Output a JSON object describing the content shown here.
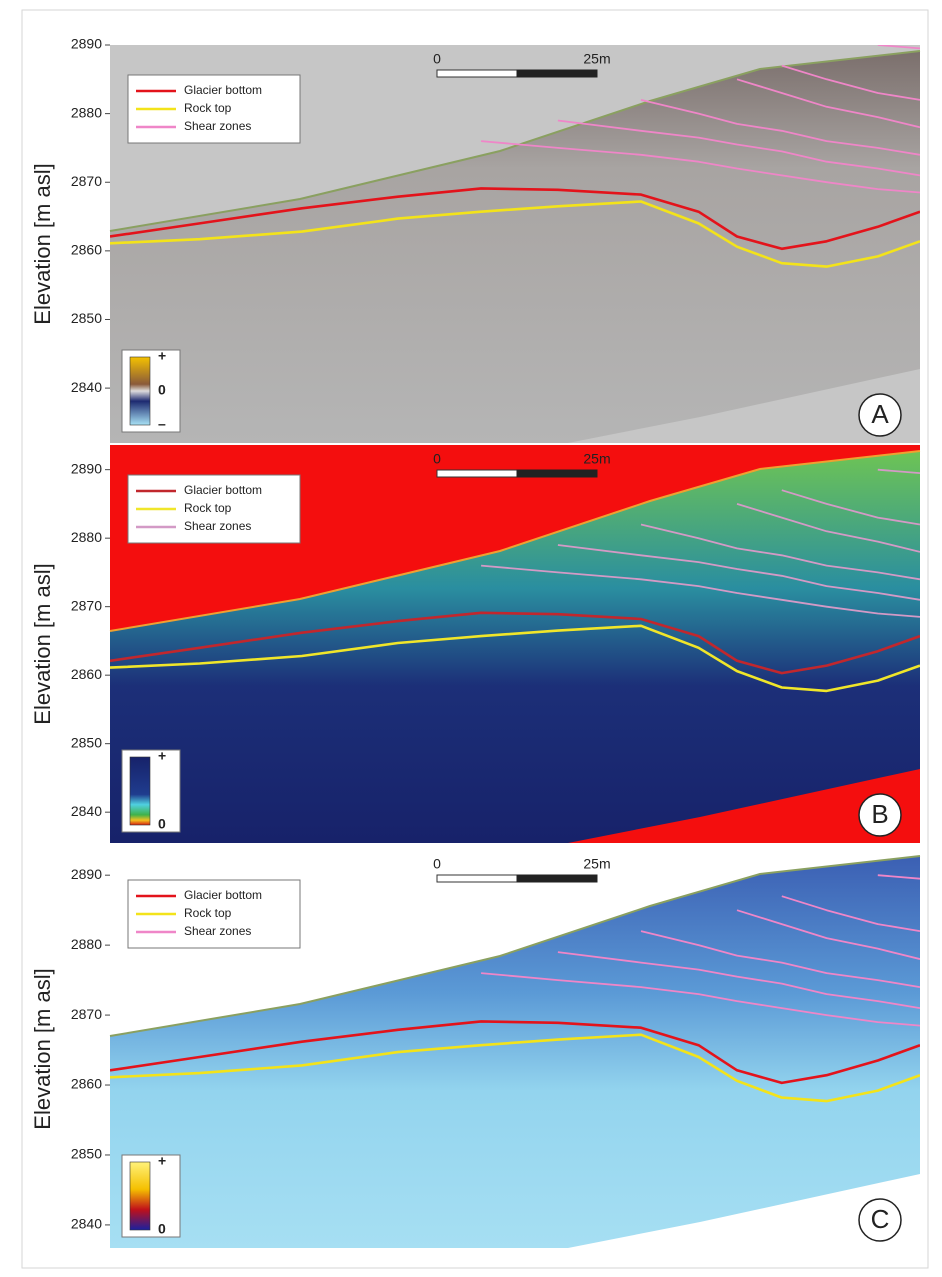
{
  "chart_data": [
    {
      "type": "line",
      "panel": "A",
      "ylabel": "Elevation [m asl]",
      "legend": "upper left",
      "scale_bar": [
        "0",
        "25m"
      ],
      "colorbar_labels": [
        "+",
        "0",
        "–"
      ],
      "x": [
        0,
        14,
        30,
        45,
        58,
        70,
        83,
        92,
        98,
        105,
        112,
        120,
        126.6
      ],
      "xlim": [
        0,
        126.6
      ],
      "ylim": [
        2832,
        2890
      ],
      "yticks": [
        2840,
        2850,
        2860,
        2870,
        2880,
        2890
      ],
      "series": [
        {
          "name": "Glacier bottom",
          "color": "#e3131b",
          "values": [
            2862.1,
            2864.0,
            2866.2,
            2867.9,
            2869.1,
            2868.9,
            2868.2,
            2865.7,
            2862.1,
            2860.3,
            2861.4,
            2863.5,
            2865.7
          ]
        },
        {
          "name": "Rock top",
          "color": "#f3e31a",
          "values": [
            2861.1,
            2861.7,
            2862.8,
            2864.7,
            2865.7,
            2866.5,
            2867.2,
            2864.0,
            2860.6,
            2858.2,
            2857.7,
            2859.2,
            2861.4
          ]
        },
        {
          "name": "Shear zones",
          "color": "#ef86c8",
          "values": [
            null,
            null,
            null,
            null,
            2876,
            2875,
            2874,
            2873,
            2872,
            2871,
            2870,
            2869,
            2868.5
          ]
        },
        {
          "color": "#ef86c8",
          "values": [
            null,
            null,
            null,
            null,
            null,
            2879,
            2877.5,
            2876.5,
            2875.5,
            2874.5,
            2873,
            2872,
            2871
          ]
        },
        {
          "color": "#ef86c8",
          "values": [
            null,
            null,
            null,
            null,
            null,
            null,
            2882,
            2880,
            2878.5,
            2877.5,
            2876,
            2875,
            2874
          ]
        },
        {
          "color": "#ef86c8",
          "values": [
            null,
            null,
            null,
            null,
            null,
            null,
            null,
            null,
            2885,
            2883,
            2881,
            2879.5,
            2878
          ]
        },
        {
          "color": "#ef86c8",
          "values": [
            null,
            null,
            null,
            null,
            null,
            null,
            null,
            null,
            null,
            2887,
            2885,
            2883,
            2882
          ]
        },
        {
          "color": "#ef86c8",
          "values": [
            null,
            null,
            null,
            null,
            null,
            null,
            null,
            null,
            null,
            null,
            null,
            2890,
            2889.5
          ]
        }
      ]
    },
    {
      "type": "line",
      "panel": "B",
      "ylabel": "Elevation [m asl]",
      "legend": "upper left",
      "scale_bar": [
        "0",
        "25m"
      ],
      "colorbar_labels": [
        "+",
        "0"
      ],
      "x": [
        0,
        14,
        30,
        45,
        58,
        70,
        83,
        92,
        98,
        105,
        112,
        120,
        126.6
      ],
      "xlim": [
        0,
        126.6
      ],
      "ylim": [
        2835.5,
        2893.6
      ],
      "yticks": [
        2840,
        2850,
        2860,
        2870,
        2880,
        2890
      ],
      "series": [
        {
          "name": "Glacier bottom",
          "color": "#c1272d",
          "values": [
            2862.1,
            2864.0,
            2866.2,
            2867.9,
            2869.1,
            2868.9,
            2868.2,
            2865.7,
            2862.1,
            2860.3,
            2861.4,
            2863.5,
            2865.7
          ]
        },
        {
          "name": "Rock top",
          "color": "#f0e62a",
          "values": [
            2861.1,
            2861.7,
            2862.8,
            2864.7,
            2865.7,
            2866.5,
            2867.2,
            2864.0,
            2860.6,
            2858.2,
            2857.7,
            2859.2,
            2861.4
          ]
        },
        {
          "name": "Shear zones",
          "color": "#d39ac6",
          "values": [
            null,
            null,
            null,
            null,
            2876,
            2875,
            2874,
            2873,
            2872,
            2871,
            2870,
            2869,
            2868.5
          ]
        },
        {
          "color": "#d39ac6",
          "values": [
            null,
            null,
            null,
            null,
            null,
            2879,
            2877.5,
            2876.5,
            2875.5,
            2874.5,
            2873,
            2872,
            2871
          ]
        },
        {
          "color": "#d39ac6",
          "values": [
            null,
            null,
            null,
            null,
            null,
            null,
            2882,
            2880,
            2878.5,
            2877.5,
            2876,
            2875,
            2874
          ]
        },
        {
          "color": "#d39ac6",
          "values": [
            null,
            null,
            null,
            null,
            null,
            null,
            null,
            null,
            2885,
            2883,
            2881,
            2879.5,
            2878
          ]
        },
        {
          "color": "#d39ac6",
          "values": [
            null,
            null,
            null,
            null,
            null,
            null,
            null,
            null,
            null,
            2887,
            2885,
            2883,
            2882
          ]
        },
        {
          "color": "#d39ac6",
          "values": [
            null,
            null,
            null,
            null,
            null,
            null,
            null,
            null,
            null,
            null,
            null,
            2890,
            2889.5
          ]
        }
      ]
    },
    {
      "type": "line",
      "panel": "C",
      "ylabel": "Elevation [m asl]",
      "legend": "upper left",
      "scale_bar": [
        "0",
        "25m"
      ],
      "colorbar_labels": [
        "+",
        "0"
      ],
      "x": [
        0,
        14,
        30,
        45,
        58,
        70,
        83,
        92,
        98,
        105,
        112,
        120,
        126.6
      ],
      "xlim": [
        0,
        126.6
      ],
      "ylim": [
        2836.7,
        2893.6
      ],
      "yticks": [
        2840,
        2850,
        2860,
        2870,
        2880,
        2890
      ],
      "series": [
        {
          "name": "Glacier bottom",
          "color": "#e3131b",
          "values": [
            2862.1,
            2864.0,
            2866.2,
            2867.9,
            2869.1,
            2868.9,
            2868.2,
            2865.7,
            2862.1,
            2860.3,
            2861.4,
            2863.5,
            2865.7
          ]
        },
        {
          "name": "Rock top",
          "color": "#f3e31a",
          "values": [
            2861.1,
            2861.7,
            2862.8,
            2864.7,
            2865.7,
            2866.5,
            2867.2,
            2864.0,
            2860.6,
            2858.2,
            2857.7,
            2859.2,
            2861.4
          ]
        },
        {
          "name": "Shear zones",
          "color": "#ef86c8",
          "values": [
            null,
            null,
            null,
            null,
            2876,
            2875,
            2874,
            2873,
            2872,
            2871,
            2870,
            2869,
            2868.5
          ]
        },
        {
          "color": "#ef86c8",
          "values": [
            null,
            null,
            null,
            null,
            null,
            2879,
            2877.5,
            2876.5,
            2875.5,
            2874.5,
            2873,
            2872,
            2871
          ]
        },
        {
          "color": "#ef86c8",
          "values": [
            null,
            null,
            null,
            null,
            null,
            null,
            2882,
            2880,
            2878.5,
            2877.5,
            2876,
            2875,
            2874
          ]
        },
        {
          "color": "#ef86c8",
          "values": [
            null,
            null,
            null,
            null,
            null,
            null,
            null,
            null,
            2885,
            2883,
            2881,
            2879.5,
            2878
          ]
        },
        {
          "color": "#ef86c8",
          "values": [
            null,
            null,
            null,
            null,
            null,
            null,
            null,
            null,
            null,
            2887,
            2885,
            2883,
            2882
          ]
        },
        {
          "color": "#ef86c8",
          "values": [
            null,
            null,
            null,
            null,
            null,
            null,
            null,
            null,
            null,
            null,
            null,
            2890,
            2889.5
          ]
        }
      ]
    }
  ]
}
